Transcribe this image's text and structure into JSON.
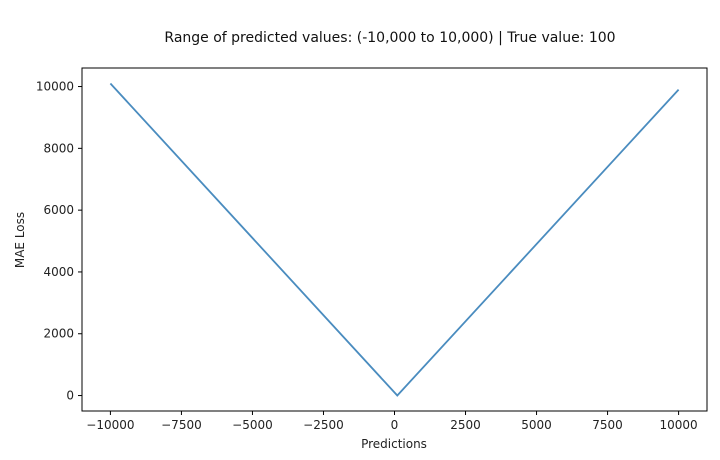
{
  "chart_data": {
    "type": "line",
    "title": "Range of predicted values: (-10,000 to 10,000) | True value: 100",
    "xlabel": "Predictions",
    "ylabel": "MAE Loss",
    "xlim": [
      -11000,
      11000
    ],
    "ylim": [
      -500,
      10600
    ],
    "grid": false,
    "xticks": [
      -10000,
      -7500,
      -5000,
      -2500,
      0,
      2500,
      5000,
      7500,
      10000
    ],
    "xtick_labels": [
      "−10000",
      "−7500",
      "−5000",
      "−2500",
      "0",
      "2500",
      "5000",
      "7500",
      "10000"
    ],
    "yticks": [
      0,
      2000,
      4000,
      6000,
      8000,
      10000
    ],
    "ytick_labels": [
      "0",
      "2000",
      "4000",
      "6000",
      "8000",
      "10000"
    ],
    "series": [
      {
        "color": "#4a8cbf",
        "x": [
          -10000,
          100,
          10000
        ],
        "y": [
          10100,
          0,
          9900
        ]
      }
    ]
  }
}
